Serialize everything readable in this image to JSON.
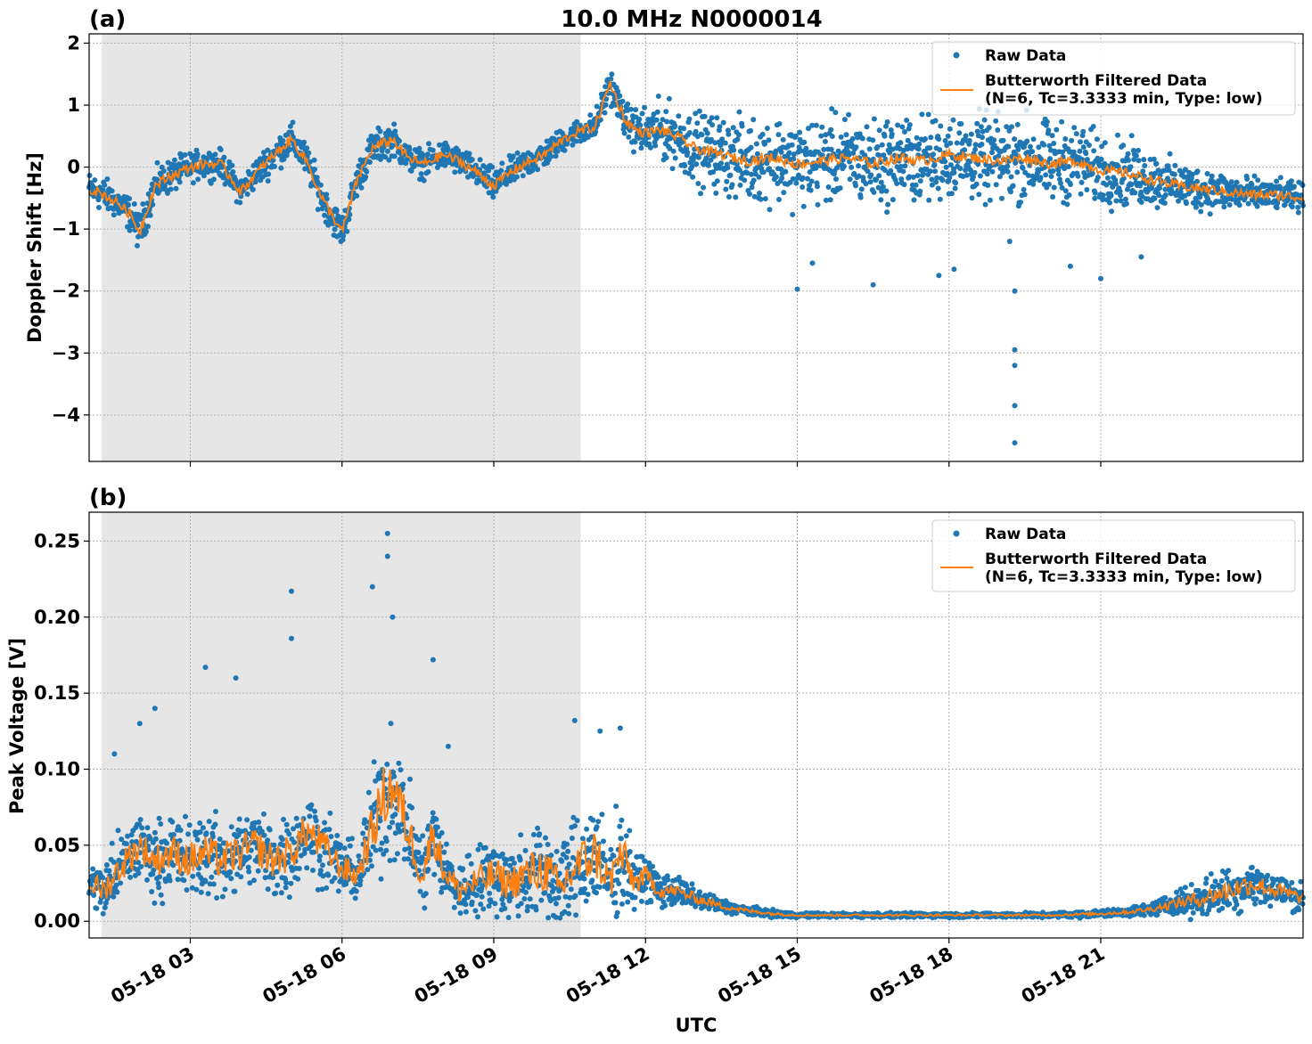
{
  "figure_title": "10.0 MHz N0000014",
  "shared_xlabel": "UTC",
  "colors": {
    "raw": "#1f77b4",
    "filtered": "#ff7f0e",
    "night_shade": "#e6e6e6",
    "grid": "#b0b0b0"
  },
  "chart_data": [
    {
      "panel": "(a)",
      "type": "line",
      "title": "10.0 MHz N0000014",
      "ylabel": "Doppler Shift [Hz]",
      "xlabel": "",
      "x_units": "UTC hours on 05-18",
      "xlim": [
        1.0,
        25.0
      ],
      "ylim": [
        -4.75,
        2.15
      ],
      "yticks": [
        2,
        1,
        0,
        -1,
        -2,
        -3,
        -4
      ],
      "ytick_labels": [
        "2",
        "1",
        "0",
        "−1",
        "−2",
        "−3",
        "−4"
      ],
      "xticks": [
        3,
        6,
        9,
        12,
        15,
        18,
        21
      ],
      "shaded_region": [
        1.25,
        10.72
      ],
      "grid": true,
      "legend_position": "top-right",
      "legend": [
        "Raw Data",
        "Butterworth Filtered Data",
        "(N=6, Tc=3.3333 min, Type: low)"
      ],
      "series": [
        {
          "name": "Raw Data",
          "style": "scatter",
          "x": [
            1.0,
            1.3,
            1.6,
            1.8,
            2.0,
            2.3,
            2.6,
            3.0,
            3.3,
            3.6,
            4.0,
            4.3,
            4.6,
            5.0,
            5.3,
            5.6,
            6.0,
            6.3,
            6.6,
            7.0,
            7.3,
            7.6,
            8.0,
            8.3,
            8.6,
            9.0,
            9.3,
            9.6,
            10.0,
            10.3,
            10.6,
            11.0,
            11.3,
            11.6,
            11.8,
            12.0,
            12.3,
            12.6,
            13.0,
            13.5,
            14.0,
            14.5,
            15.0,
            15.5,
            16.0,
            16.5,
            17.0,
            17.5,
            18.0,
            18.5,
            19.0,
            19.5,
            20.0,
            20.5,
            21.0,
            21.5,
            22.0,
            22.5,
            23.0,
            23.5,
            24.0,
            24.5,
            25.0
          ],
          "y": [
            -0.35,
            -0.45,
            -0.6,
            -0.75,
            -1.05,
            -0.3,
            -0.15,
            0.0,
            0.05,
            0.05,
            -0.4,
            -0.1,
            0.15,
            0.45,
            0.1,
            -0.5,
            -1.05,
            -0.2,
            0.3,
            0.45,
            0.15,
            0.05,
            0.2,
            0.1,
            -0.05,
            -0.3,
            -0.1,
            0.05,
            0.2,
            0.4,
            0.55,
            0.65,
            1.35,
            0.75,
            0.6,
            0.55,
            0.6,
            0.5,
            0.3,
            0.2,
            0.1,
            0.15,
            0.05,
            0.1,
            0.15,
            0.05,
            0.15,
            0.1,
            0.2,
            0.15,
            0.1,
            0.15,
            0.05,
            0.1,
            -0.05,
            -0.1,
            -0.2,
            -0.3,
            -0.35,
            -0.4,
            -0.45,
            -0.45,
            -0.5
          ],
          "spread": [
            0.35,
            0.35,
            0.35,
            0.35,
            0.4,
            0.35,
            0.35,
            0.3,
            0.3,
            0.3,
            0.3,
            0.3,
            0.35,
            0.35,
            0.35,
            0.35,
            0.35,
            0.35,
            0.35,
            0.35,
            0.3,
            0.3,
            0.3,
            0.3,
            0.3,
            0.35,
            0.3,
            0.3,
            0.3,
            0.25,
            0.25,
            0.3,
            0.35,
            0.35,
            0.45,
            0.55,
            0.6,
            0.65,
            0.75,
            0.8,
            0.85,
            0.9,
            0.9,
            0.9,
            0.9,
            0.9,
            0.9,
            0.9,
            0.9,
            0.9,
            0.9,
            0.9,
            0.85,
            0.8,
            0.75,
            0.7,
            0.6,
            0.5,
            0.45,
            0.4,
            0.35,
            0.3,
            0.3
          ],
          "outliers": [
            [
              15.0,
              -1.97
            ],
            [
              15.3,
              -1.55
            ],
            [
              16.5,
              -1.9
            ],
            [
              17.8,
              -1.75
            ],
            [
              18.1,
              -1.65
            ],
            [
              19.2,
              -1.2
            ],
            [
              19.3,
              -2.0
            ],
            [
              19.3,
              -2.95
            ],
            [
              19.3,
              -3.2
            ],
            [
              19.3,
              -3.85
            ],
            [
              19.3,
              -4.45
            ],
            [
              21.0,
              -1.8
            ],
            [
              21.8,
              -1.45
            ],
            [
              20.4,
              -1.6
            ]
          ]
        },
        {
          "name": "Butterworth Filtered Data",
          "style": "line",
          "x": [
            1.0,
            1.3,
            1.6,
            1.8,
            2.0,
            2.3,
            2.6,
            3.0,
            3.3,
            3.6,
            4.0,
            4.3,
            4.6,
            5.0,
            5.3,
            5.6,
            6.0,
            6.3,
            6.6,
            7.0,
            7.3,
            7.6,
            8.0,
            8.3,
            8.6,
            9.0,
            9.3,
            9.6,
            10.0,
            10.3,
            10.6,
            11.0,
            11.3,
            11.6,
            11.8,
            12.0,
            12.3,
            12.6,
            13.0,
            13.5,
            14.0,
            14.5,
            15.0,
            15.5,
            16.0,
            16.5,
            17.0,
            17.5,
            18.0,
            18.5,
            19.0,
            19.5,
            20.0,
            20.5,
            21.0,
            21.5,
            22.0,
            22.5,
            23.0,
            23.5,
            24.0,
            24.5,
            25.0
          ],
          "y": [
            -0.35,
            -0.45,
            -0.6,
            -0.75,
            -1.05,
            -0.3,
            -0.15,
            0.0,
            0.05,
            0.05,
            -0.4,
            -0.1,
            0.15,
            0.45,
            0.1,
            -0.5,
            -1.05,
            -0.2,
            0.3,
            0.45,
            0.15,
            0.05,
            0.2,
            0.1,
            -0.05,
            -0.3,
            -0.1,
            0.05,
            0.2,
            0.4,
            0.55,
            0.65,
            1.35,
            0.75,
            0.6,
            0.55,
            0.6,
            0.5,
            0.3,
            0.2,
            0.1,
            0.15,
            0.05,
            0.1,
            0.15,
            0.05,
            0.15,
            0.1,
            0.2,
            0.15,
            0.1,
            0.15,
            0.05,
            0.1,
            -0.05,
            -0.1,
            -0.2,
            -0.3,
            -0.35,
            -0.4,
            -0.45,
            -0.45,
            -0.5
          ]
        }
      ]
    },
    {
      "panel": "(b)",
      "type": "line",
      "title": "",
      "ylabel": "Peak Voltage [V]",
      "xlabel": "UTC",
      "x_units": "UTC hours on 05-18",
      "xlim": [
        1.0,
        25.0
      ],
      "ylim": [
        -0.011,
        0.269
      ],
      "yticks": [
        0.25,
        0.2,
        0.15,
        0.1,
        0.05,
        0.0
      ],
      "ytick_labels": [
        "0.25",
        "0.20",
        "0.15",
        "0.10",
        "0.05",
        "0.00"
      ],
      "xticks": [
        3,
        6,
        9,
        12,
        15,
        18,
        21
      ],
      "xtick_labels": [
        "05-18 03",
        "05-18 06",
        "05-18 09",
        "05-18 12",
        "05-18 15",
        "05-18 18",
        "05-18 21"
      ],
      "shaded_region": [
        1.25,
        10.72
      ],
      "grid": true,
      "legend_position": "top-right",
      "legend": [
        "Raw Data",
        "Butterworth Filtered Data",
        "(N=6, Tc=3.3333 min, Type: low)"
      ],
      "series": [
        {
          "name": "Raw Data",
          "style": "scatter",
          "x": [
            1.0,
            1.3,
            1.6,
            2.0,
            2.3,
            2.6,
            3.0,
            3.3,
            3.6,
            4.0,
            4.3,
            4.6,
            5.0,
            5.3,
            5.6,
            6.0,
            6.3,
            6.6,
            6.8,
            7.0,
            7.3,
            7.6,
            7.8,
            8.0,
            8.3,
            8.6,
            9.0,
            9.3,
            9.6,
            10.0,
            10.3,
            10.6,
            11.0,
            11.3,
            11.5,
            11.8,
            12.0,
            12.3,
            12.6,
            13.0,
            13.5,
            14.0,
            14.5,
            15.0,
            16.0,
            17.0,
            18.0,
            19.0,
            20.0,
            21.0,
            21.5,
            22.0,
            22.5,
            23.0,
            23.5,
            24.0,
            24.5,
            25.0
          ],
          "y": [
            0.025,
            0.02,
            0.035,
            0.05,
            0.04,
            0.045,
            0.04,
            0.045,
            0.04,
            0.045,
            0.05,
            0.04,
            0.045,
            0.06,
            0.05,
            0.035,
            0.03,
            0.06,
            0.08,
            0.09,
            0.06,
            0.03,
            0.06,
            0.035,
            0.02,
            0.025,
            0.03,
            0.025,
            0.03,
            0.035,
            0.02,
            0.035,
            0.045,
            0.025,
            0.045,
            0.025,
            0.03,
            0.02,
            0.02,
            0.015,
            0.01,
            0.007,
            0.005,
            0.004,
            0.004,
            0.004,
            0.004,
            0.004,
            0.004,
            0.005,
            0.006,
            0.008,
            0.012,
            0.015,
            0.02,
            0.025,
            0.02,
            0.015
          ],
          "spread": [
            0.02,
            0.025,
            0.03,
            0.03,
            0.03,
            0.035,
            0.035,
            0.035,
            0.035,
            0.035,
            0.035,
            0.035,
            0.035,
            0.035,
            0.035,
            0.025,
            0.025,
            0.045,
            0.06,
            0.06,
            0.045,
            0.035,
            0.04,
            0.03,
            0.025,
            0.03,
            0.035,
            0.03,
            0.04,
            0.045,
            0.04,
            0.045,
            0.05,
            0.035,
            0.045,
            0.025,
            0.02,
            0.015,
            0.012,
            0.01,
            0.006,
            0.004,
            0.003,
            0.002,
            0.002,
            0.002,
            0.002,
            0.002,
            0.002,
            0.003,
            0.004,
            0.005,
            0.01,
            0.015,
            0.02,
            0.02,
            0.015,
            0.012
          ],
          "outliers": [
            [
              1.5,
              0.11
            ],
            [
              2.0,
              0.13
            ],
            [
              2.3,
              0.14
            ],
            [
              3.3,
              0.167
            ],
            [
              3.9,
              0.16
            ],
            [
              5.0,
              0.186
            ],
            [
              5.0,
              0.217
            ],
            [
              6.6,
              0.22
            ],
            [
              6.9,
              0.255
            ],
            [
              6.9,
              0.24
            ],
            [
              7.0,
              0.2
            ],
            [
              7.8,
              0.172
            ],
            [
              8.1,
              0.115
            ],
            [
              10.6,
              0.132
            ],
            [
              11.5,
              0.127
            ],
            [
              11.1,
              0.125
            ]
          ]
        },
        {
          "name": "Butterworth Filtered Data",
          "style": "line",
          "x": [
            1.0,
            1.3,
            1.6,
            2.0,
            2.3,
            2.6,
            3.0,
            3.3,
            3.6,
            4.0,
            4.3,
            4.6,
            5.0,
            5.3,
            5.6,
            6.0,
            6.3,
            6.6,
            6.8,
            7.0,
            7.3,
            7.6,
            7.8,
            8.0,
            8.3,
            8.6,
            9.0,
            9.3,
            9.6,
            10.0,
            10.3,
            10.6,
            11.0,
            11.3,
            11.5,
            11.8,
            12.0,
            12.3,
            12.6,
            13.0,
            13.5,
            14.0,
            14.5,
            15.0,
            16.0,
            17.0,
            18.0,
            19.0,
            20.0,
            21.0,
            21.5,
            22.0,
            22.5,
            23.0,
            23.5,
            24.0,
            24.5,
            25.0
          ],
          "y": [
            0.025,
            0.02,
            0.035,
            0.05,
            0.04,
            0.045,
            0.04,
            0.045,
            0.04,
            0.045,
            0.05,
            0.04,
            0.045,
            0.06,
            0.05,
            0.035,
            0.03,
            0.06,
            0.08,
            0.09,
            0.06,
            0.03,
            0.06,
            0.035,
            0.02,
            0.025,
            0.03,
            0.025,
            0.03,
            0.035,
            0.02,
            0.035,
            0.045,
            0.025,
            0.045,
            0.025,
            0.03,
            0.02,
            0.02,
            0.015,
            0.01,
            0.007,
            0.005,
            0.004,
            0.004,
            0.004,
            0.004,
            0.004,
            0.004,
            0.005,
            0.006,
            0.008,
            0.012,
            0.015,
            0.02,
            0.025,
            0.02,
            0.015
          ]
        }
      ]
    }
  ]
}
